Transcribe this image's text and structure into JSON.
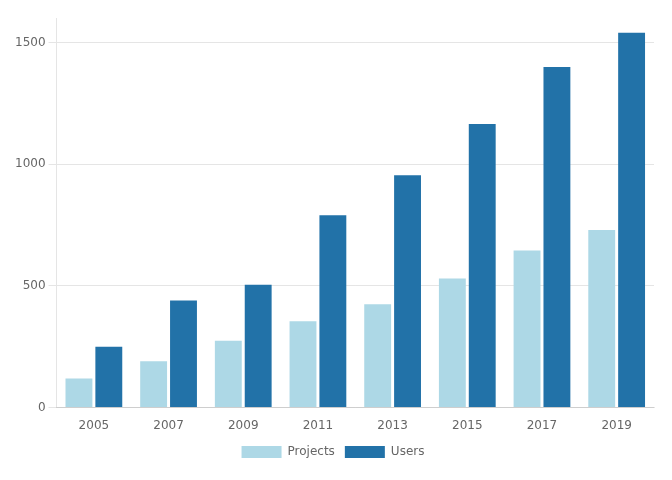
{
  "chart_data": {
    "type": "bar",
    "categories": [
      "2005",
      "2007",
      "2009",
      "2011",
      "2013",
      "2015",
      "2017",
      "2019"
    ],
    "series": [
      {
        "name": "Projects",
        "color": "#add8e6",
        "values": [
          120,
          190,
          275,
          355,
          425,
          530,
          645,
          730
        ]
      },
      {
        "name": "Users",
        "color": "#2272a8",
        "values": [
          250,
          440,
          505,
          790,
          955,
          1165,
          1400,
          1540
        ]
      }
    ],
    "ylim": [
      0,
      1600
    ],
    "yticks": [
      0,
      500,
      1000,
      1500
    ],
    "grid": true,
    "legend": "bottom"
  }
}
